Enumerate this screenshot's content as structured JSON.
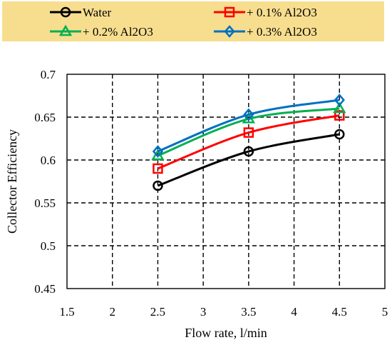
{
  "chart_data": {
    "type": "line",
    "title": "",
    "xlabel": "Flow rate, l/min",
    "ylabel": "Collector Efficiency",
    "xlim": [
      1.5,
      5
    ],
    "ylim": [
      0.45,
      0.7
    ],
    "x_ticks": [
      "1.5",
      "2",
      "2.5",
      "3",
      "3.5",
      "4",
      "4.5",
      "5"
    ],
    "y_ticks": [
      "0.45",
      "0.5",
      "0.55",
      "0.6",
      "0.65",
      "0.7"
    ],
    "grid": "dashed, on",
    "legend_position": "top",
    "legend_background": "#F7DE8F",
    "x": [
      2.5,
      3.5,
      4.5
    ],
    "series": [
      {
        "name": "Water",
        "values": [
          0.57,
          0.61,
          0.63
        ],
        "color": "#000000",
        "marker": "circle"
      },
      {
        "name": "+ 0.1% Al2O3",
        "values": [
          0.59,
          0.632,
          0.652
        ],
        "color": "#FF0000",
        "marker": "square"
      },
      {
        "name": "+ 0.2% Al2O3",
        "values": [
          0.605,
          0.648,
          0.66
        ],
        "color": "#00B050",
        "marker": "triangle"
      },
      {
        "name": "+ 0.3% Al2O3",
        "values": [
          0.61,
          0.653,
          0.67
        ],
        "color": "#0070C0",
        "marker": "diamond"
      }
    ]
  }
}
